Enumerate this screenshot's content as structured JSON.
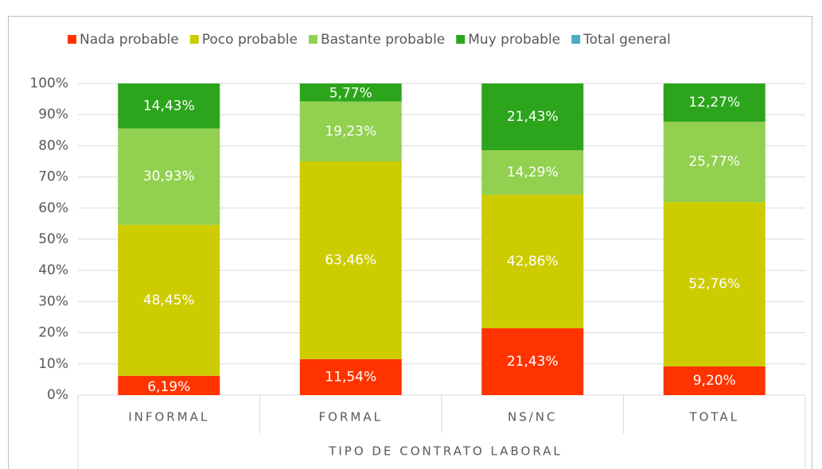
{
  "chart_data": {
    "type": "stacked_bar",
    "categories": [
      "INFORMAL",
      "FORMAL",
      "NS/NC",
      "TOTAL"
    ],
    "x_label": "TIPO DE CONTRATO LABORAL",
    "series": [
      {
        "name": "Nada probable",
        "color": "#ff3300",
        "values": [
          6.19,
          11.54,
          21.43,
          9.2
        ],
        "value_labels": [
          "6,19%",
          "11,54%",
          "21,43%",
          "9,20%"
        ]
      },
      {
        "name": "Poco probable",
        "color": "#cccc00",
        "values": [
          48.45,
          63.46,
          42.86,
          52.76
        ],
        "value_labels": [
          "48,45%",
          "63,46%",
          "42,86%",
          "52,76%"
        ]
      },
      {
        "name": "Bastante probable",
        "color": "#92d050",
        "values": [
          30.93,
          19.23,
          14.29,
          25.77
        ],
        "value_labels": [
          "30,93%",
          "19,23%",
          "14,29%",
          "25,77%"
        ]
      },
      {
        "name": "Muy probable",
        "color": "#2ca51c",
        "values": [
          14.43,
          5.77,
          21.43,
          12.27
        ],
        "value_labels": [
          "14,43%",
          "5,77%",
          "21,43%",
          "12,27%"
        ]
      },
      {
        "name": "Total general",
        "color": "#4bacc6",
        "values": [
          null,
          null,
          null,
          null
        ]
      }
    ],
    "ylim": [
      0,
      100
    ],
    "yticks": [
      {
        "value": 0,
        "label": "0%"
      },
      {
        "value": 10,
        "label": "10%"
      },
      {
        "value": 20,
        "label": "20%"
      },
      {
        "value": 30,
        "label": "30%"
      },
      {
        "value": 40,
        "label": "40%"
      },
      {
        "value": 50,
        "label": "50%"
      },
      {
        "value": 60,
        "label": "60%"
      },
      {
        "value": 70,
        "label": "70%"
      },
      {
        "value": 80,
        "label": "80%"
      },
      {
        "value": 90,
        "label": "90%"
      },
      {
        "value": 100,
        "label": "100%"
      }
    ],
    "grid": true,
    "legend": "top"
  }
}
